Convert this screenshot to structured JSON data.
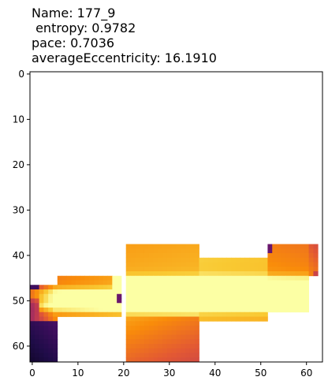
{
  "chart_data": {
    "type": "heatmap",
    "title_lines": [
      "Name: 177_9",
      " entropy: 0.9782",
      "pace: 0.7036",
      "averageEccentricity: 16.1910"
    ],
    "xlabel": "",
    "ylabel": "",
    "xlim": [
      -0.5,
      63.5
    ],
    "ylim": [
      63.5,
      -0.5
    ],
    "xticks": [
      0,
      10,
      20,
      30,
      40,
      50,
      60
    ],
    "yticks": [
      0,
      10,
      20,
      30,
      40,
      50,
      60
    ],
    "colormap": "inferno",
    "background_color": "#ffffff",
    "regions": [
      {
        "x0": 0,
        "x1": 5,
        "y0": 47,
        "y1": 54,
        "v_left": 0.22,
        "v_right": 0.78,
        "v_top": 0.65,
        "v_bottom": 0.7
      },
      {
        "x0": 0,
        "x1": 5,
        "y0": 55,
        "y1": 63,
        "v_left": 0.08,
        "v_right": 0.18,
        "v_top": 0.25,
        "v_bottom": 0.1
      },
      {
        "x0": 6,
        "x1": 19,
        "y0": 45,
        "y1": 53,
        "v_left": 0.75,
        "v_right": 0.9,
        "v_top": 0.7,
        "v_bottom": 0.72
      },
      {
        "x0": 21,
        "x1": 36,
        "y0": 38,
        "y1": 53,
        "v_left": 0.86,
        "v_right": 0.9,
        "v_top": 0.72,
        "v_bottom": 0.88
      },
      {
        "x0": 21,
        "x1": 36,
        "y0": 54,
        "y1": 63,
        "v_left": 0.78,
        "v_right": 0.62,
        "v_top": 0.8,
        "v_bottom": 0.55
      },
      {
        "x0": 37,
        "x1": 51,
        "y0": 41,
        "y1": 54,
        "v_left": 0.9,
        "v_right": 0.86,
        "v_top": 0.88,
        "v_bottom": 0.8
      },
      {
        "x0": 52,
        "x1": 60,
        "y0": 38,
        "y1": 52,
        "v_left": 0.84,
        "v_right": 0.8,
        "v_top": 0.6,
        "v_bottom": 0.82
      },
      {
        "x0": 61,
        "x1": 62,
        "y0": 38,
        "y1": 44,
        "v_left": 0.7,
        "v_right": 0.65,
        "v_top": 0.55,
        "v_bottom": 0.75
      }
    ],
    "bright_bands": [
      {
        "y": 46,
        "x0": 18,
        "x1": 60,
        "strength": 0.35
      },
      {
        "y": 48.5,
        "x0": 0,
        "x1": 60,
        "strength": 0.3
      },
      {
        "y": 51,
        "x0": 2,
        "x1": 60,
        "strength": 0.35
      }
    ],
    "dark_spots": [
      {
        "x0": 52,
        "x1": 52,
        "y0": 38,
        "y1": 39,
        "v": 0.3
      },
      {
        "x0": 45,
        "x1": 46,
        "y0": 38,
        "y1": 40,
        "v": 0.55
      },
      {
        "x0": 19,
        "x1": 20,
        "y0": 49,
        "y1": 50,
        "v": 0.3
      },
      {
        "x0": 0,
        "x1": 1,
        "y0": 47,
        "y1": 47,
        "v": 0.2
      },
      {
        "x0": 62,
        "x1": 62,
        "y0": 44,
        "y1": 44,
        "v": 0.55
      }
    ]
  }
}
